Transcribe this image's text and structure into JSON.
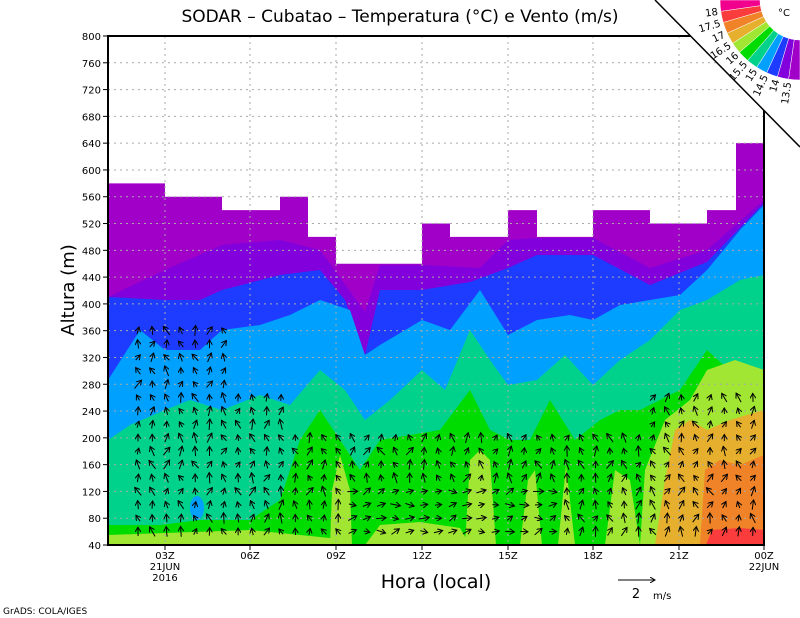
{
  "chart_data": {
    "type": "heatmap",
    "title": "SODAR – Cubatao – Temperatura (°C) e Vento (m/s)",
    "xlabel": "Hora (local)",
    "ylabel": "Altura (m)",
    "ylim": [
      40,
      800
    ],
    "y_ticks": [
      "40",
      "80",
      "120",
      "160",
      "200",
      "240",
      "280",
      "320",
      "360",
      "400",
      "440",
      "480",
      "520",
      "560",
      "600",
      "640",
      "680",
      "720",
      "760",
      "800"
    ],
    "x_ticks": [
      {
        "label": "03Z",
        "sub": [
          "21JUN",
          "2016"
        ]
      },
      {
        "label": "06Z",
        "sub": []
      },
      {
        "label": "09Z",
        "sub": []
      },
      {
        "label": "12Z",
        "sub": []
      },
      {
        "label": "15Z",
        "sub": []
      },
      {
        "label": "18Z",
        "sub": []
      },
      {
        "label": "21Z",
        "sub": []
      },
      {
        "label": "00Z",
        "sub": [
          "22JUN"
        ]
      }
    ],
    "grid": true,
    "colorbar": {
      "unit": "°C",
      "levels": [
        "18",
        "17.5",
        "17",
        "16.5",
        "16",
        "15.5",
        "15",
        "14.5",
        "14",
        "13.5"
      ],
      "colors": [
        "#f0008c",
        "#fa3c3c",
        "#f08228",
        "#e6af2d",
        "#a0e632",
        "#00dc00",
        "#00d28c",
        "#00a0ff",
        "#1e3cff",
        "#8200dc",
        "#a000c8"
      ]
    },
    "data_top_height_m": [
      580,
      560,
      540,
      560,
      500,
      460,
      520,
      500,
      540,
      500,
      540,
      520,
      540,
      640
    ],
    "vector_reference": {
      "value": "2",
      "unit": "m/s"
    }
  },
  "footer": "GrADS: COLA/IGES"
}
